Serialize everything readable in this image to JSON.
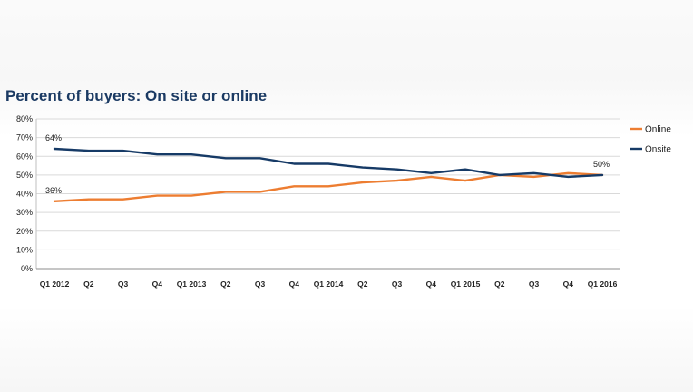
{
  "chart_data": {
    "type": "line",
    "title": "Percent of buyers: On site or online",
    "categories": [
      "Q1 2012",
      "Q2",
      "Q3",
      "Q4",
      "Q1 2013",
      "Q2",
      "Q3",
      "Q4",
      "Q1 2014",
      "Q2",
      "Q3",
      "Q4",
      "Q1 2015",
      "Q2",
      "Q3",
      "Q4",
      "Q1 2016"
    ],
    "ylim": [
      0,
      80
    ],
    "yticks": [
      "0%",
      "10%",
      "20%",
      "30%",
      "40%",
      "50%",
      "60%",
      "70%",
      "80%"
    ],
    "grid": true,
    "legend_position": "right",
    "series": [
      {
        "name": "Online",
        "color": "#ed7d31",
        "values": [
          36,
          37,
          37,
          39,
          39,
          41,
          41,
          44,
          44,
          46,
          47,
          49,
          47,
          50,
          49,
          51,
          50
        ]
      },
      {
        "name": "Onsite",
        "color": "#163a66",
        "values": [
          64,
          63,
          63,
          61,
          61,
          59,
          59,
          56,
          56,
          54,
          53,
          51,
          53,
          50,
          51,
          49,
          50
        ]
      }
    ],
    "data_labels": [
      {
        "series": "Onsite",
        "index": 0,
        "text": "64%"
      },
      {
        "series": "Online",
        "index": 0,
        "text": "36%"
      },
      {
        "series": "Onsite",
        "index": 16,
        "text": "50%"
      }
    ]
  }
}
